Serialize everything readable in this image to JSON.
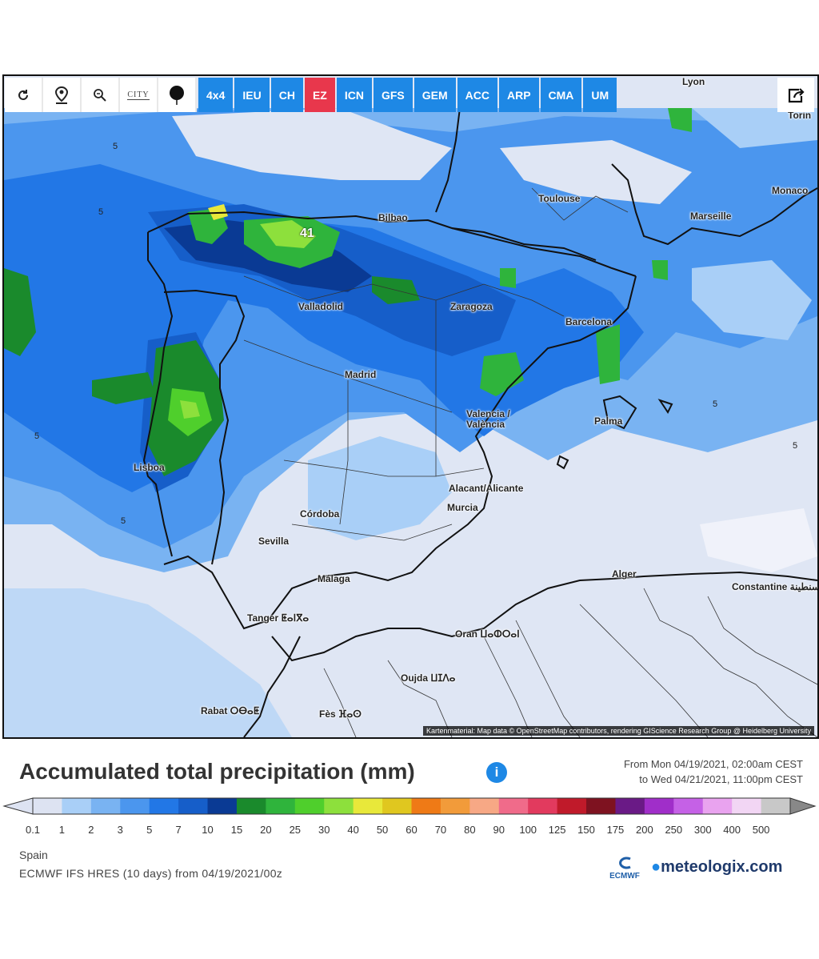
{
  "toolbar": {
    "tools": [
      "refresh-icon",
      "location-pin-icon",
      "zoom-icon",
      "city-labels-icon",
      "point-marker-icon"
    ],
    "city_label": "CITY",
    "models": [
      "4x4",
      "IEU",
      "CH",
      "EZ",
      "ICN",
      "GFS",
      "GEM",
      "ACC",
      "ARP",
      "CMA",
      "UM"
    ],
    "active_model": "EZ",
    "share_icon": "share-icon"
  },
  "map": {
    "cities": [
      {
        "name": "Lyon"
      },
      {
        "name": "Torin"
      },
      {
        "name": "Monaco"
      },
      {
        "name": "Toulouse"
      },
      {
        "name": "Marseille"
      },
      {
        "name": "Bilbao"
      },
      {
        "name": "Valladolid"
      },
      {
        "name": "Zaragoza"
      },
      {
        "name": "Barcelona"
      },
      {
        "name": "Madrid"
      },
      {
        "name": "Valencia / València"
      },
      {
        "name": "Palma"
      },
      {
        "name": "Lisboa"
      },
      {
        "name": "Alacant/Alicante"
      },
      {
        "name": "Murcia"
      },
      {
        "name": "Córdoba"
      },
      {
        "name": "Sevilla"
      },
      {
        "name": "Málaga"
      },
      {
        "name": "Alger"
      },
      {
        "name": "Constantine قسنطينة"
      },
      {
        "name": "Tanger ⵟⴰⵏⴳⴰ"
      },
      {
        "name": "Oran ⵡⴰⵀⵔⴰⵏ"
      },
      {
        "name": "Oujda ⵡⵊⴷⴰ"
      },
      {
        "name": "Rabat ⵔⴱⴰⵟ"
      },
      {
        "name": "Fès ⴼⴰⵙ"
      }
    ],
    "max_value": "41",
    "contour_label": "5",
    "credits": "Kartenmaterial: Map data © OpenStreetMap contributors, rendering GIScience Research Group @ Heidelberg University"
  },
  "legend": {
    "title": "Accumulated total precipitation (mm)",
    "info_icon": "info-icon",
    "period_line1": "From Mon 04/19/2021, 02:00am CEST",
    "period_line2": "to Wed 04/21/2021, 11:00pm CEST",
    "ticks": [
      "0.1",
      "1",
      "2",
      "3",
      "5",
      "7",
      "10",
      "15",
      "20",
      "25",
      "30",
      "40",
      "50",
      "60",
      "70",
      "80",
      "90",
      "100",
      "125",
      "150",
      "175",
      "200",
      "250",
      "300",
      "400",
      "500"
    ],
    "colors": [
      "#dde3f2",
      "#a9cff7",
      "#79b3f2",
      "#4b96ee",
      "#2277e6",
      "#165ec9",
      "#0a3a94",
      "#1a8a2c",
      "#2fb43c",
      "#4fcf2c",
      "#8de03c",
      "#e8e83a",
      "#e0c71f",
      "#ef7a16",
      "#f29b3a",
      "#f7a885",
      "#f06b8a",
      "#e23a5e",
      "#c01a2a",
      "#7e1220",
      "#6a1a86",
      "#a02ec9",
      "#c561e6",
      "#e9a3ef",
      "#f2d6f4",
      "#c8c8c8"
    ]
  },
  "footer": {
    "region": "Spain",
    "model_run": "ECMWF IFS HRES (10 days) from 04/19/2021/00z",
    "ecmwf_label": "ECMWF",
    "brand": "meteologix.com"
  }
}
